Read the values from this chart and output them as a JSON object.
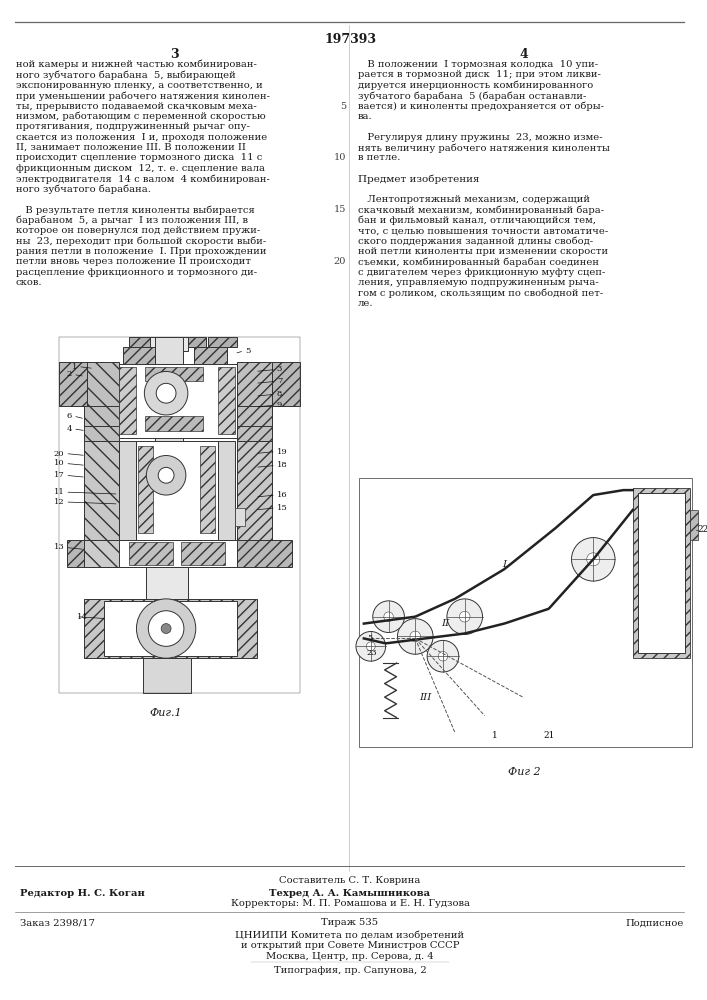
{
  "patent_number": "197393",
  "page_left": "3",
  "page_right": "4",
  "fig1_caption": "Фиг.1",
  "fig2_caption": "Фиг 2",
  "footer_composer": "Составитель С. Т. Коврина",
  "footer_editor": "Редактор Н. С. Коган",
  "footer_techred": "Техред А. А. Камышникова",
  "footer_correctors": "Корректоры: М. П. Ромашова и Е. Н. Гудзова",
  "footer_order": "Заказ 2398/17",
  "footer_tirazh": "Тираж 535",
  "footer_podpisnoe": "Подписное",
  "footer_tsniip": "ЦНИИПИ Комитета по делам изобретений",
  "footer_otkr": "и открытий при Совете Министров СССР",
  "footer_address": "Москва, Центр, пр. Серова, д. 4",
  "footer_tipog": "Типография, пр. Сапунова, 2",
  "bg_color": "#ffffff",
  "text_color": "#1a1a1a"
}
